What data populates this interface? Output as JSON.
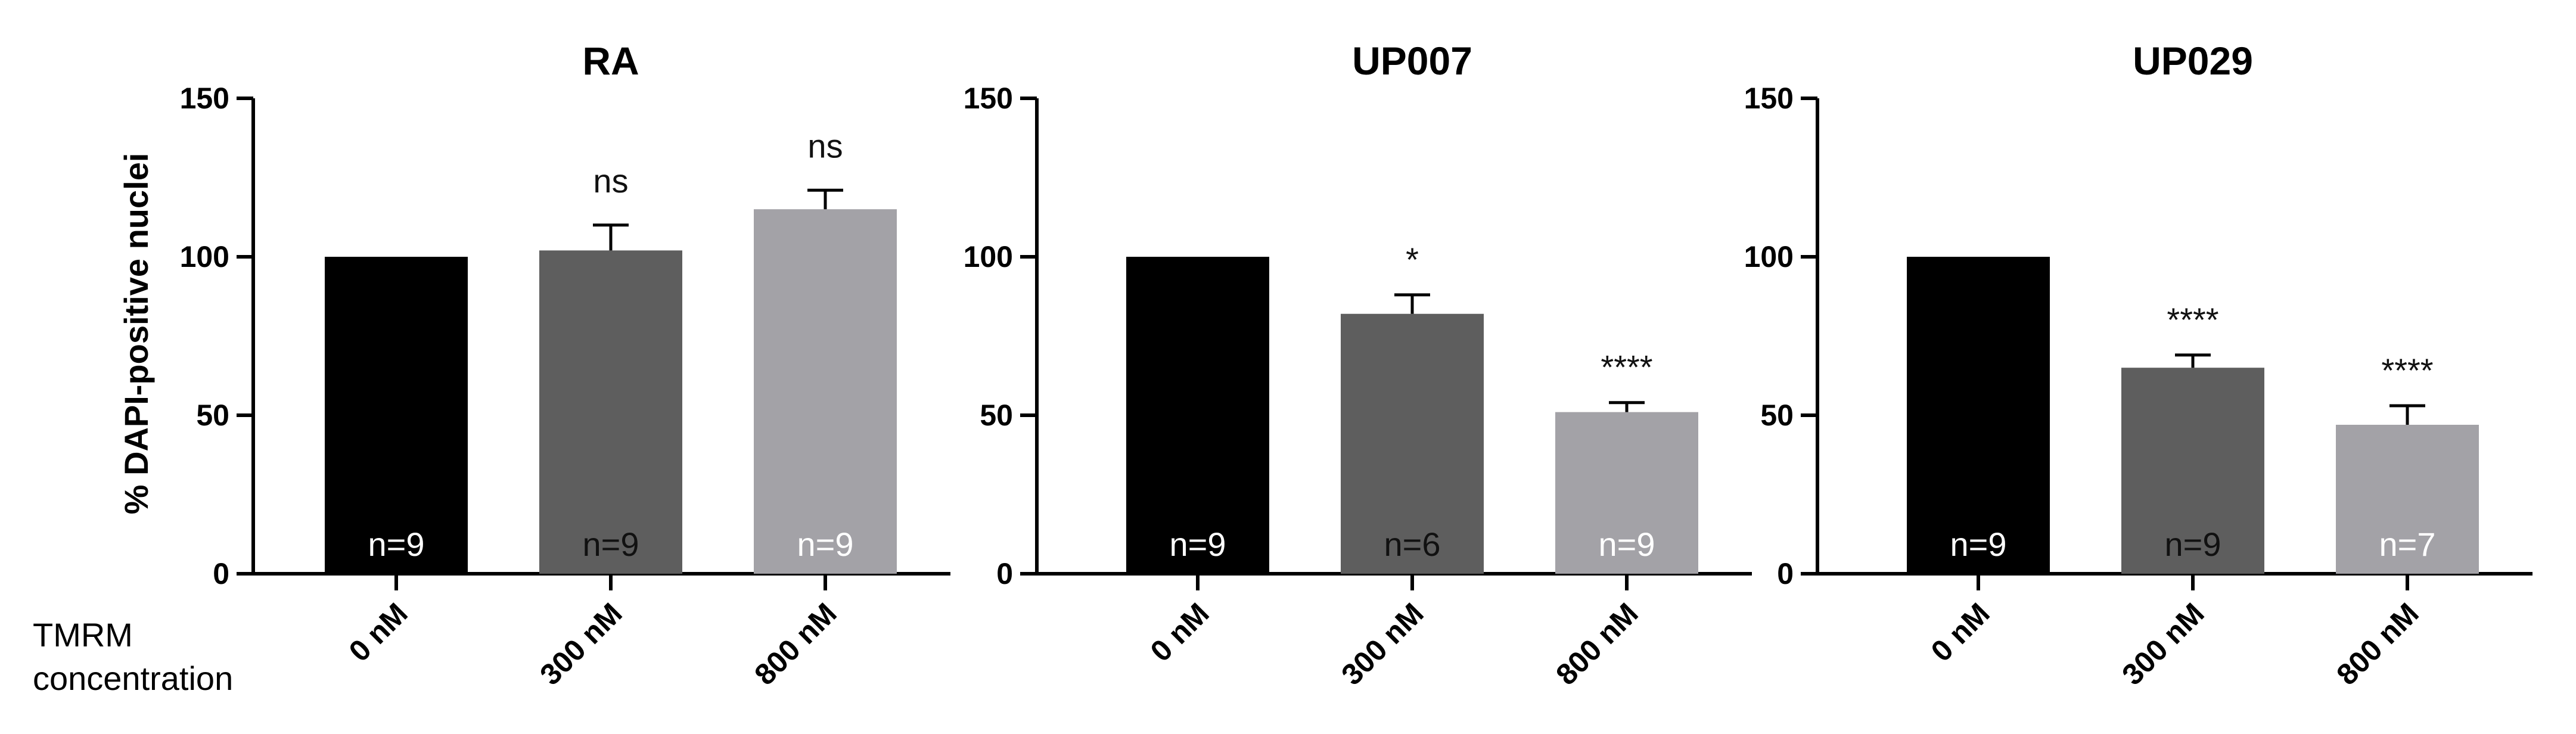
{
  "chart_data": [
    {
      "type": "bar",
      "title": "RA",
      "ylabel": "% DAPI-positive nuclei",
      "ylim": [
        0,
        150
      ],
      "yticks": [
        0,
        50,
        100,
        150
      ],
      "categories": [
        "0 nM",
        "300 nM",
        "800 nM"
      ],
      "values": [
        100,
        102,
        115
      ],
      "errors": [
        0,
        8,
        6
      ],
      "n_labels": [
        "n=9",
        "n=9",
        "n=9"
      ],
      "significance": [
        "",
        "ns",
        "ns"
      ],
      "colors": [
        "#000000",
        "#5e5e5e",
        "#a3a2a7"
      ]
    },
    {
      "type": "bar",
      "title": "UP007",
      "ylim": [
        0,
        150
      ],
      "yticks": [
        0,
        50,
        100,
        150
      ],
      "categories": [
        "0 nM",
        "300 nM",
        "800 nM"
      ],
      "values": [
        100,
        82,
        51
      ],
      "errors": [
        0,
        6,
        3
      ],
      "n_labels": [
        "n=9",
        "n=6",
        "n=9"
      ],
      "significance": [
        "",
        "*",
        "****"
      ],
      "colors": [
        "#000000",
        "#5e5e5e",
        "#a3a2a7"
      ]
    },
    {
      "type": "bar",
      "title": "UP029",
      "ylim": [
        0,
        150
      ],
      "yticks": [
        0,
        50,
        100,
        150
      ],
      "categories": [
        "0 nM",
        "300 nM",
        "800 nM"
      ],
      "values": [
        100,
        65,
        47
      ],
      "errors": [
        0,
        4,
        6
      ],
      "n_labels": [
        "n=9",
        "n=9",
        "n=7"
      ],
      "significance": [
        "",
        "****",
        "****"
      ],
      "colors": [
        "#000000",
        "#5e5e5e",
        "#a3a2a7"
      ]
    }
  ],
  "x_axis_label": {
    "line1": "TMRM",
    "line2": "concentration"
  },
  "n_label_colors": [
    "#ffffff",
    "#111111",
    "#ffffff"
  ]
}
